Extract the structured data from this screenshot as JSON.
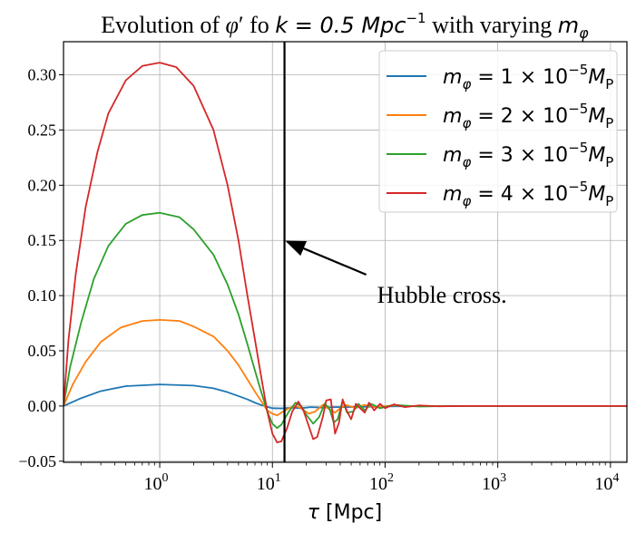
{
  "chart_data": {
    "type": "line",
    "title": {
      "prefix": "Evolution of ",
      "phi": "φ",
      "prime": "′",
      "mid": " fo ",
      "k_expr": "k = 0.5 Mpc",
      "k_exp": "−1",
      "suffix": " with varying ",
      "m_sym": "m",
      "m_sub": "φ"
    },
    "xlabel": {
      "sym": "τ",
      "unit": " [Mpc]"
    },
    "ylabel": "",
    "x_scale": "log",
    "xlim": [
      0.14,
      14000
    ],
    "ylim": [
      -0.051,
      0.33
    ],
    "grid": true,
    "x_ticks": [
      {
        "value": 1,
        "base": "10",
        "exp": "0"
      },
      {
        "value": 10,
        "base": "10",
        "exp": "1"
      },
      {
        "value": 100,
        "base": "10",
        "exp": "2"
      },
      {
        "value": 1000,
        "base": "10",
        "exp": "3"
      },
      {
        "value": 10000,
        "base": "10",
        "exp": "4"
      }
    ],
    "y_ticks": [
      {
        "value": -0.05,
        "label": "−0.05"
      },
      {
        "value": 0.0,
        "label": "0.00"
      },
      {
        "value": 0.05,
        "label": "0.05"
      },
      {
        "value": 0.1,
        "label": "0.10"
      },
      {
        "value": 0.15,
        "label": "0.15"
      },
      {
        "value": 0.2,
        "label": "0.20"
      },
      {
        "value": 0.25,
        "label": "0.25"
      },
      {
        "value": 0.3,
        "label": "0.30"
      }
    ],
    "vertical_line": {
      "x": 12.8,
      "color": "#000000"
    },
    "annotation": {
      "text": "Hubble cross.",
      "text_x": 85,
      "text_y": 0.1,
      "arrow_from": [
        68,
        0.119
      ],
      "arrow_to": [
        13.5,
        0.149
      ]
    },
    "legend": {
      "placement": "upper right"
    },
    "series": [
      {
        "name": {
          "pre": "m",
          "sub": "φ",
          "mid": " = 1 × 10",
          "sup": "−5",
          "post_sym": "M",
          "post_sub": "P"
        },
        "color": "#1f77b4",
        "points": [
          [
            0.14,
            0.0
          ],
          [
            0.2,
            0.007
          ],
          [
            0.3,
            0.0135
          ],
          [
            0.5,
            0.018
          ],
          [
            1,
            0.0195
          ],
          [
            2,
            0.0185
          ],
          [
            3,
            0.016
          ],
          [
            4,
            0.0125
          ],
          [
            5,
            0.009
          ],
          [
            6,
            0.006
          ],
          [
            7,
            0.003
          ],
          [
            8,
            0.0008
          ],
          [
            9,
            -0.0008
          ],
          [
            10,
            -0.002
          ],
          [
            12,
            -0.0022
          ],
          [
            15,
            -0.0015
          ],
          [
            18,
            -0.002
          ],
          [
            22,
            -0.001
          ],
          [
            28,
            -0.0015
          ],
          [
            35,
            -0.001
          ],
          [
            45,
            -0.001
          ],
          [
            60,
            -0.0008
          ],
          [
            100,
            -0.0004
          ],
          [
            200,
            -0.0002
          ],
          [
            500,
            0.0
          ],
          [
            14000,
            0.0
          ]
        ]
      },
      {
        "name": {
          "pre": "m",
          "sub": "φ",
          "mid": " = 2 × 10",
          "sup": "−5",
          "post_sym": "M",
          "post_sub": "P"
        },
        "color": "#ff7f0e",
        "points": [
          [
            0.14,
            0.0
          ],
          [
            0.17,
            0.02
          ],
          [
            0.22,
            0.04
          ],
          [
            0.3,
            0.058
          ],
          [
            0.45,
            0.071
          ],
          [
            0.7,
            0.077
          ],
          [
            1,
            0.078
          ],
          [
            1.5,
            0.077
          ],
          [
            2,
            0.072
          ],
          [
            3,
            0.063
          ],
          [
            4,
            0.05
          ],
          [
            5,
            0.037
          ],
          [
            6,
            0.024
          ],
          [
            7,
            0.013
          ],
          [
            8,
            0.004
          ],
          [
            9,
            -0.004
          ],
          [
            10,
            -0.007
          ],
          [
            11,
            -0.0085
          ],
          [
            12,
            -0.006
          ],
          [
            14,
            -0.002
          ],
          [
            16,
            0.0
          ],
          [
            18,
            -0.002
          ],
          [
            21,
            -0.007
          ],
          [
            24,
            -0.005
          ],
          [
            28,
            0.001
          ],
          [
            32,
            -0.003
          ],
          [
            36,
            -0.006
          ],
          [
            40,
            -0.002
          ],
          [
            45,
            0.001
          ],
          [
            55,
            -0.002
          ],
          [
            65,
            0.001
          ],
          [
            80,
            -0.001
          ],
          [
            120,
            0.0005
          ],
          [
            200,
            -0.0003
          ],
          [
            400,
            0.0
          ],
          [
            14000,
            0.0
          ]
        ]
      },
      {
        "name": {
          "pre": "m",
          "sub": "φ",
          "mid": " = 3 × 10",
          "sup": "−5",
          "post_sym": "M",
          "post_sub": "P"
        },
        "color": "#2ca02c",
        "points": [
          [
            0.14,
            0.0
          ],
          [
            0.16,
            0.035
          ],
          [
            0.2,
            0.075
          ],
          [
            0.26,
            0.115
          ],
          [
            0.35,
            0.145
          ],
          [
            0.5,
            0.165
          ],
          [
            0.7,
            0.173
          ],
          [
            1,
            0.175
          ],
          [
            1.5,
            0.171
          ],
          [
            2,
            0.16
          ],
          [
            3,
            0.137
          ],
          [
            4,
            0.11
          ],
          [
            5,
            0.083
          ],
          [
            6,
            0.056
          ],
          [
            7,
            0.032
          ],
          [
            8,
            0.012
          ],
          [
            9,
            -0.005
          ],
          [
            10,
            -0.016
          ],
          [
            11,
            -0.02
          ],
          [
            12,
            -0.017
          ],
          [
            14,
            -0.005
          ],
          [
            16,
            0.003
          ],
          [
            18,
            0.0
          ],
          [
            20,
            -0.008
          ],
          [
            23,
            -0.016
          ],
          [
            26,
            -0.01
          ],
          [
            29,
            0.002
          ],
          [
            32,
            -0.002
          ],
          [
            35,
            -0.015
          ],
          [
            38,
            -0.012
          ],
          [
            42,
            0.005
          ],
          [
            46,
            -0.006
          ],
          [
            52,
            -0.005
          ],
          [
            58,
            0.002
          ],
          [
            66,
            -0.004
          ],
          [
            75,
            0.002
          ],
          [
            90,
            -0.002
          ],
          [
            120,
            0.001
          ],
          [
            200,
            -0.0005
          ],
          [
            400,
            0.0
          ],
          [
            14000,
            0.0
          ]
        ]
      },
      {
        "name": {
          "pre": "m",
          "sub": "φ",
          "mid": " = 4 × 10",
          "sup": "−5",
          "post_sym": "M",
          "post_sub": "P"
        },
        "color": "#d62728",
        "points": [
          [
            0.14,
            0.0
          ],
          [
            0.155,
            0.06
          ],
          [
            0.18,
            0.12
          ],
          [
            0.22,
            0.18
          ],
          [
            0.28,
            0.23
          ],
          [
            0.35,
            0.265
          ],
          [
            0.5,
            0.295
          ],
          [
            0.7,
            0.308
          ],
          [
            1,
            0.311
          ],
          [
            1.4,
            0.307
          ],
          [
            2,
            0.29
          ],
          [
            3,
            0.25
          ],
          [
            4,
            0.2
          ],
          [
            5,
            0.15
          ],
          [
            6,
            0.1
          ],
          [
            7,
            0.06
          ],
          [
            8,
            0.025
          ],
          [
            9,
            -0.005
          ],
          [
            10,
            -0.025
          ],
          [
            11,
            -0.033
          ],
          [
            12,
            -0.032
          ],
          [
            13.5,
            -0.02
          ],
          [
            15,
            -0.005
          ],
          [
            17,
            0.004
          ],
          [
            19,
            -0.005
          ],
          [
            21,
            -0.018
          ],
          [
            23,
            -0.03
          ],
          [
            25,
            -0.028
          ],
          [
            28,
            -0.01
          ],
          [
            30,
            0.005
          ],
          [
            33,
            0.006
          ],
          [
            36,
            -0.025
          ],
          [
            39,
            -0.015
          ],
          [
            42,
            0.006
          ],
          [
            46,
            -0.005
          ],
          [
            50,
            -0.012
          ],
          [
            55,
            0.002
          ],
          [
            60,
            -0.002
          ],
          [
            66,
            -0.006
          ],
          [
            72,
            0.003
          ],
          [
            80,
            -0.004
          ],
          [
            90,
            0.002
          ],
          [
            100,
            -0.002
          ],
          [
            120,
            0.0015
          ],
          [
            150,
            -0.001
          ],
          [
            200,
            0.0005
          ],
          [
            300,
            -0.0003
          ],
          [
            500,
            0.0
          ],
          [
            14000,
            0.0
          ]
        ]
      }
    ]
  }
}
